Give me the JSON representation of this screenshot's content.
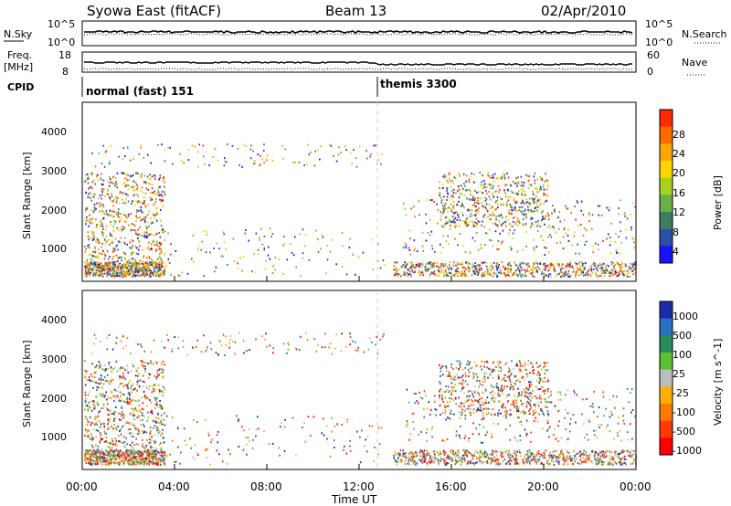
{
  "header": {
    "title": "Syowa East (fitACF)",
    "beam": "Beam 13",
    "date": "02/Apr/2010"
  },
  "panels": {
    "nsky": {
      "left_label": "N.Sky",
      "right_label": "N.Search",
      "left_ticks": [
        "10^5",
        "10^0"
      ],
      "right_ticks": [
        "10^5",
        "10^0"
      ]
    },
    "freq": {
      "left_label_1": "Freq.",
      "left_label_2": "[MHz]",
      "right_label": "Nave",
      "left_ticks": [
        "18",
        "8"
      ],
      "right_ticks": [
        "60",
        "0"
      ]
    },
    "cpid": {
      "label": "CPID",
      "modes": [
        "normal (fast) 151",
        "themis 3300"
      ]
    }
  },
  "chart_data": [
    {
      "type": "heatmap",
      "title": "",
      "ylabel": "Slant Range [km]",
      "xlabel": "",
      "yticks": [
        "1000",
        "2000",
        "3000",
        "4000"
      ],
      "colorbar": {
        "label": "Power [dB]",
        "ticks": [
          "4",
          "8",
          "12",
          "16",
          "20",
          "24",
          "28"
        ],
        "colors": [
          "#1414ff",
          "#2a4fa8",
          "#3a8060",
          "#6ab04a",
          "#a8d020",
          "#ffd400",
          "#ffa500",
          "#ff6a00",
          "#ff2a00"
        ]
      },
      "grid": false
    },
    {
      "type": "heatmap",
      "title": "",
      "ylabel": "Slant Range [km]",
      "xlabel": "Time UT",
      "xticks": [
        "00:00",
        "04:00",
        "08:00",
        "12:00",
        "16:00",
        "20:00",
        "00:00"
      ],
      "yticks": [
        "1000",
        "2000",
        "3000",
        "4000"
      ],
      "colorbar": {
        "label": "Velocity [m s^-1]",
        "ticks": [
          "1000",
          "500",
          "100",
          "25",
          "-25",
          "-100",
          "-500",
          "-1000"
        ],
        "colors": [
          "#1a2aa8",
          "#2a70c0",
          "#2c8a5a",
          "#5cc030",
          "#bdbdbd",
          "#ffb000",
          "#ff7a00",
          "#ff3a00",
          "#ff0000"
        ]
      },
      "grid": false
    }
  ]
}
